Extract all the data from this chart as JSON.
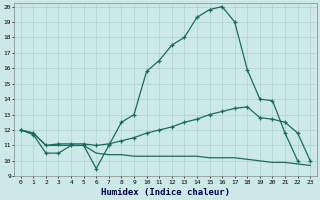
{
  "xlabel": "Humidex (Indice chaleur)",
  "background_color": "#cce9e7",
  "line_color": "#1a6b5e",
  "grid_color": "#aad4d0",
  "xlim": [
    -0.5,
    23.5
  ],
  "ylim": [
    9,
    20.2
  ],
  "yticks": [
    9,
    10,
    11,
    12,
    13,
    14,
    15,
    16,
    17,
    18,
    19,
    20
  ],
  "xticks": [
    0,
    1,
    2,
    3,
    4,
    5,
    6,
    7,
    8,
    9,
    10,
    11,
    12,
    13,
    14,
    15,
    16,
    17,
    18,
    19,
    20,
    21,
    22,
    23
  ],
  "curve1_x": [
    0,
    1,
    2,
    3,
    4,
    5,
    6,
    7,
    8,
    9,
    10,
    11,
    12,
    13,
    14,
    15,
    16,
    17,
    18,
    19,
    20,
    21,
    22
  ],
  "curve1_y": [
    12,
    11.7,
    10.5,
    10.5,
    11.0,
    11.0,
    9.5,
    11.0,
    12.5,
    13.0,
    15.8,
    16.5,
    17.5,
    18.0,
    19.3,
    19.8,
    20.0,
    19.0,
    15.9,
    14.0,
    13.9,
    11.8,
    10.0
  ],
  "curve2_x": [
    0,
    1,
    2,
    3,
    4,
    5,
    6,
    7,
    8,
    9,
    10,
    11,
    12,
    13,
    14,
    15,
    16,
    17,
    18,
    19,
    20,
    21,
    22,
    23
  ],
  "curve2_y": [
    12,
    11.8,
    11.0,
    11.1,
    11.1,
    11.1,
    11.0,
    11.1,
    11.3,
    11.5,
    11.8,
    12.0,
    12.2,
    12.5,
    12.7,
    13.0,
    13.2,
    13.4,
    13.5,
    12.8,
    12.7,
    12.5,
    11.8,
    10.0
  ],
  "curve3_x": [
    0,
    1,
    2,
    3,
    4,
    5,
    6,
    7,
    8,
    9,
    10,
    11,
    12,
    13,
    14,
    15,
    16,
    17,
    18,
    19,
    20,
    21,
    22,
    23
  ],
  "curve3_y": [
    12,
    11.8,
    11.0,
    11.0,
    11.0,
    11.0,
    10.5,
    10.4,
    10.4,
    10.3,
    10.3,
    10.3,
    10.3,
    10.3,
    10.3,
    10.2,
    10.2,
    10.2,
    10.1,
    10.0,
    9.9,
    9.9,
    9.8,
    9.7
  ]
}
